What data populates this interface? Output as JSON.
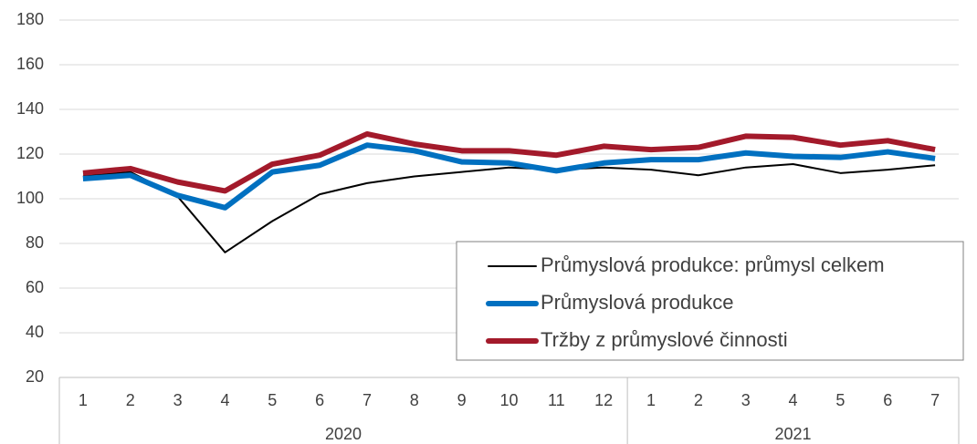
{
  "chart_data": {
    "type": "line",
    "category_groups": [
      {
        "name": "2020",
        "categories": [
          "1",
          "2",
          "3",
          "4",
          "5",
          "6",
          "7",
          "8",
          "9",
          "10",
          "11",
          "12"
        ]
      },
      {
        "name": "2021",
        "categories": [
          "1",
          "2",
          "3",
          "4",
          "5",
          "6",
          "7"
        ]
      }
    ],
    "series": [
      {
        "name": "Průmyslová produkce: průmysl celkem",
        "color": "#000000",
        "values": [
          110,
          112,
          101,
          76,
          90,
          102,
          107,
          110,
          112,
          114,
          113,
          114,
          113,
          110.5,
          114,
          115.5,
          111.5,
          113,
          115
        ]
      },
      {
        "name": "Průmyslová produkce",
        "color": "#0070c0",
        "values": [
          109,
          110.5,
          101.5,
          96,
          112,
          115,
          124,
          121.5,
          116.5,
          116,
          112.5,
          116,
          117.5,
          117.5,
          120.5,
          119,
          118.5,
          121,
          118
        ]
      },
      {
        "name": "Tržby z průmyslové činnosti",
        "color": "#a31a2b",
        "values": [
          111.5,
          113.5,
          107.5,
          103.5,
          115.5,
          119.5,
          129,
          124.5,
          121.5,
          121.5,
          119.5,
          123.5,
          122,
          123,
          128,
          127.5,
          124,
          126,
          122
        ]
      }
    ],
    "ylim": [
      20,
      180
    ],
    "yticks": [
      20,
      40,
      60,
      80,
      100,
      120,
      140,
      160,
      180
    ],
    "grid": true,
    "legend": "bottom-right"
  }
}
